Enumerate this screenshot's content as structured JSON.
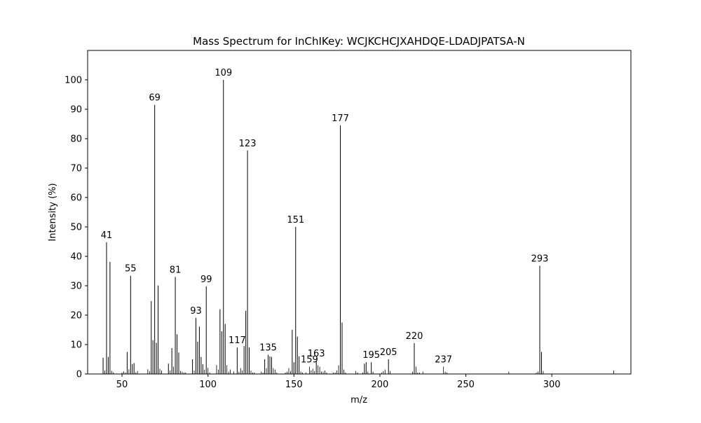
{
  "chart_data": {
    "type": "bar",
    "title": "Mass Spectrum for InChIKey: WCJKCHCJXAHDQE-LDADJPATSA-N",
    "xlabel": "m/z",
    "ylabel": "Intensity (%)",
    "xlim": [
      30,
      346
    ],
    "ylim": [
      0,
      110
    ],
    "xticks": [
      50,
      100,
      150,
      200,
      250,
      300
    ],
    "yticks": [
      0,
      10,
      20,
      30,
      40,
      50,
      60,
      70,
      80,
      90,
      100
    ],
    "grid": false,
    "bar_color": "#000000",
    "peaks": [
      {
        "mz": 39,
        "intensity": 5.5
      },
      {
        "mz": 40,
        "intensity": 1.2
      },
      {
        "mz": 41,
        "intensity": 44.8,
        "label": "41"
      },
      {
        "mz": 42,
        "intensity": 5.8
      },
      {
        "mz": 43,
        "intensity": 38.1
      },
      {
        "mz": 44,
        "intensity": 1.1
      },
      {
        "mz": 45,
        "intensity": 0.6
      },
      {
        "mz": 50,
        "intensity": 0.5
      },
      {
        "mz": 51,
        "intensity": 0.9
      },
      {
        "mz": 52,
        "intensity": 0.5
      },
      {
        "mz": 53,
        "intensity": 7.5
      },
      {
        "mz": 54,
        "intensity": 1.6
      },
      {
        "mz": 55,
        "intensity": 33.4,
        "label": "55"
      },
      {
        "mz": 56,
        "intensity": 3.4
      },
      {
        "mz": 57,
        "intensity": 3.7
      },
      {
        "mz": 58,
        "intensity": 0.5
      },
      {
        "mz": 59,
        "intensity": 1.0
      },
      {
        "mz": 65,
        "intensity": 1.6
      },
      {
        "mz": 66,
        "intensity": 1.0
      },
      {
        "mz": 67,
        "intensity": 24.8
      },
      {
        "mz": 68,
        "intensity": 11.5
      },
      {
        "mz": 69,
        "intensity": 91.5,
        "label": "69"
      },
      {
        "mz": 70,
        "intensity": 10.6
      },
      {
        "mz": 71,
        "intensity": 30.1
      },
      {
        "mz": 72,
        "intensity": 1.8
      },
      {
        "mz": 73,
        "intensity": 1.2
      },
      {
        "mz": 77,
        "intensity": 3.5
      },
      {
        "mz": 78,
        "intensity": 1.2
      },
      {
        "mz": 79,
        "intensity": 8.8
      },
      {
        "mz": 80,
        "intensity": 2.5
      },
      {
        "mz": 81,
        "intensity": 33.0,
        "label": "81"
      },
      {
        "mz": 82,
        "intensity": 13.5
      },
      {
        "mz": 83,
        "intensity": 7.3
      },
      {
        "mz": 84,
        "intensity": 1.0
      },
      {
        "mz": 85,
        "intensity": 0.8
      },
      {
        "mz": 86,
        "intensity": 0.5
      },
      {
        "mz": 87,
        "intensity": 0.5
      },
      {
        "mz": 91,
        "intensity": 5.0
      },
      {
        "mz": 92,
        "intensity": 1.2
      },
      {
        "mz": 93,
        "intensity": 19.1,
        "label": "93"
      },
      {
        "mz": 94,
        "intensity": 11.0
      },
      {
        "mz": 95,
        "intensity": 16.1
      },
      {
        "mz": 96,
        "intensity": 5.8
      },
      {
        "mz": 97,
        "intensity": 3.3
      },
      {
        "mz": 98,
        "intensity": 1.5
      },
      {
        "mz": 99,
        "intensity": 29.8,
        "label": "99"
      },
      {
        "mz": 100,
        "intensity": 2.1
      },
      {
        "mz": 101,
        "intensity": 0.5
      },
      {
        "mz": 105,
        "intensity": 3.0
      },
      {
        "mz": 106,
        "intensity": 1.5
      },
      {
        "mz": 107,
        "intensity": 22.0
      },
      {
        "mz": 108,
        "intensity": 14.5
      },
      {
        "mz": 109,
        "intensity": 100.0,
        "label": "109"
      },
      {
        "mz": 110,
        "intensity": 17.0
      },
      {
        "mz": 111,
        "intensity": 3.0
      },
      {
        "mz": 112,
        "intensity": 0.8
      },
      {
        "mz": 113,
        "intensity": 1.5
      },
      {
        "mz": 115,
        "intensity": 0.8
      },
      {
        "mz": 117,
        "intensity": 9.0,
        "label": "117"
      },
      {
        "mz": 118,
        "intensity": 0.8
      },
      {
        "mz": 119,
        "intensity": 2.0
      },
      {
        "mz": 120,
        "intensity": 1.2
      },
      {
        "mz": 121,
        "intensity": 9.5
      },
      {
        "mz": 122,
        "intensity": 21.5
      },
      {
        "mz": 123,
        "intensity": 76.0,
        "label": "123"
      },
      {
        "mz": 124,
        "intensity": 9.0
      },
      {
        "mz": 125,
        "intensity": 1.2
      },
      {
        "mz": 126,
        "intensity": 0.5
      },
      {
        "mz": 127,
        "intensity": 0.5
      },
      {
        "mz": 131,
        "intensity": 0.8
      },
      {
        "mz": 132,
        "intensity": 0.5
      },
      {
        "mz": 133,
        "intensity": 5.0
      },
      {
        "mz": 134,
        "intensity": 2.0
      },
      {
        "mz": 135,
        "intensity": 6.5,
        "label": "135"
      },
      {
        "mz": 136,
        "intensity": 6.0
      },
      {
        "mz": 137,
        "intensity": 5.8
      },
      {
        "mz": 138,
        "intensity": 2.0
      },
      {
        "mz": 139,
        "intensity": 1.5
      },
      {
        "mz": 140,
        "intensity": 0.5
      },
      {
        "mz": 145,
        "intensity": 0.5
      },
      {
        "mz": 146,
        "intensity": 0.8
      },
      {
        "mz": 147,
        "intensity": 2.0
      },
      {
        "mz": 148,
        "intensity": 1.0
      },
      {
        "mz": 149,
        "intensity": 15.0
      },
      {
        "mz": 150,
        "intensity": 4.0
      },
      {
        "mz": 151,
        "intensity": 50.0,
        "label": "151"
      },
      {
        "mz": 152,
        "intensity": 12.7
      },
      {
        "mz": 153,
        "intensity": 6.0
      },
      {
        "mz": 154,
        "intensity": 0.8
      },
      {
        "mz": 155,
        "intensity": 0.5
      },
      {
        "mz": 157,
        "intensity": 0.5
      },
      {
        "mz": 159,
        "intensity": 2.5,
        "label": "159"
      },
      {
        "mz": 160,
        "intensity": 1.2
      },
      {
        "mz": 161,
        "intensity": 1.8
      },
      {
        "mz": 162,
        "intensity": 1.0
      },
      {
        "mz": 163,
        "intensity": 4.5,
        "label": "163"
      },
      {
        "mz": 164,
        "intensity": 3.0
      },
      {
        "mz": 165,
        "intensity": 2.5
      },
      {
        "mz": 166,
        "intensity": 0.8
      },
      {
        "mz": 167,
        "intensity": 0.8
      },
      {
        "mz": 168,
        "intensity": 1.2
      },
      {
        "mz": 169,
        "intensity": 0.5
      },
      {
        "mz": 173,
        "intensity": 0.5
      },
      {
        "mz": 174,
        "intensity": 0.5
      },
      {
        "mz": 175,
        "intensity": 1.2
      },
      {
        "mz": 176,
        "intensity": 3.0
      },
      {
        "mz": 177,
        "intensity": 84.5,
        "label": "177"
      },
      {
        "mz": 178,
        "intensity": 17.5
      },
      {
        "mz": 179,
        "intensity": 1.5
      },
      {
        "mz": 180,
        "intensity": 0.5
      },
      {
        "mz": 186,
        "intensity": 1.0
      },
      {
        "mz": 187,
        "intensity": 0.5
      },
      {
        "mz": 190,
        "intensity": 0.5
      },
      {
        "mz": 191,
        "intensity": 3.5
      },
      {
        "mz": 192,
        "intensity": 4.0
      },
      {
        "mz": 193,
        "intensity": 0.8
      },
      {
        "mz": 195,
        "intensity": 4.0,
        "label": "195"
      },
      {
        "mz": 196,
        "intensity": 0.8
      },
      {
        "mz": 201,
        "intensity": 0.5
      },
      {
        "mz": 202,
        "intensity": 1.0
      },
      {
        "mz": 203,
        "intensity": 1.5
      },
      {
        "mz": 205,
        "intensity": 5.0,
        "label": "205"
      },
      {
        "mz": 206,
        "intensity": 1.0
      },
      {
        "mz": 219,
        "intensity": 0.8
      },
      {
        "mz": 220,
        "intensity": 10.5,
        "label": "220"
      },
      {
        "mz": 221,
        "intensity": 2.5
      },
      {
        "mz": 222,
        "intensity": 0.5
      },
      {
        "mz": 223,
        "intensity": 0.5
      },
      {
        "mz": 225,
        "intensity": 0.8
      },
      {
        "mz": 237,
        "intensity": 2.5,
        "label": "237"
      },
      {
        "mz": 238,
        "intensity": 0.8
      },
      {
        "mz": 239,
        "intensity": 0.5
      },
      {
        "mz": 275,
        "intensity": 0.8
      },
      {
        "mz": 291,
        "intensity": 0.5
      },
      {
        "mz": 292,
        "intensity": 0.8
      },
      {
        "mz": 293,
        "intensity": 36.8,
        "label": "293"
      },
      {
        "mz": 294,
        "intensity": 7.5
      },
      {
        "mz": 295,
        "intensity": 1.0
      },
      {
        "mz": 336,
        "intensity": 1.2
      }
    ]
  }
}
